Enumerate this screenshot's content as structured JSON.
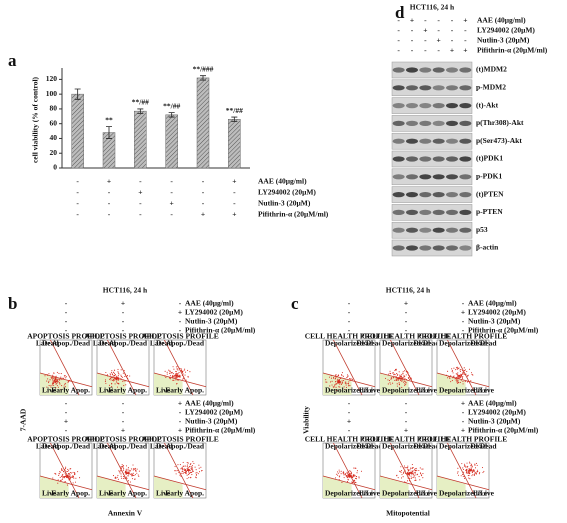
{
  "chart_data": {
    "type": "bar",
    "letter": "a",
    "ylabel": "cell viability (% of control)",
    "values": [
      100,
      48,
      77,
      72,
      122,
      66
    ],
    "errors": [
      7,
      8,
      3,
      3,
      3,
      3
    ],
    "annotations": [
      null,
      "**",
      "**/##",
      "**/##",
      "**/###",
      "**/##"
    ],
    "color": "#9a9a9a",
    "ylim": [
      0,
      130
    ],
    "yticks": [
      0,
      20,
      40,
      60,
      80,
      100,
      120
    ],
    "treatments": [
      {
        "label": "AAE (40μg/ml)",
        "signs": [
          "-",
          "+",
          "-",
          "-",
          "-",
          "+"
        ]
      },
      {
        "label": "LY294002 (20μM)",
        "signs": [
          "-",
          "-",
          "+",
          "-",
          "-",
          "-"
        ]
      },
      {
        "label": "Nutlin-3 (20μM)",
        "signs": [
          "-",
          "-",
          "-",
          "+",
          "-",
          "-"
        ]
      },
      {
        "label": "Pifithrin-α (20μM/ml)",
        "signs": [
          "-",
          "-",
          "-",
          "-",
          "+",
          "+"
        ]
      }
    ]
  },
  "panel_b": {
    "letter": "b",
    "title": "HCT116, 24 h",
    "plot_title": "APOPTOSIS PROFILE",
    "ylabel": "7-AAD",
    "xlabel": "Annexin V",
    "quadrants": [
      "Dead",
      "Late Apop./Dead",
      "Live",
      "Early Apop."
    ],
    "treatments_top": [
      {
        "label": "AAE (40μg/ml)",
        "signs": [
          "-",
          "+",
          "-"
        ]
      },
      {
        "label": "LY294002 (20μM)",
        "signs": [
          "-",
          "-",
          "+"
        ]
      },
      {
        "label": "Nutlin-3 (20μM)",
        "signs": [
          "-",
          "-",
          "-"
        ]
      },
      {
        "label": "Pifithrin-α (20μM/ml)",
        "signs": [
          "-",
          "-",
          "-"
        ]
      }
    ],
    "treatments_bottom": [
      {
        "label": "AAE (40μg/ml)",
        "signs": [
          "-",
          "-",
          "+"
        ]
      },
      {
        "label": "LY294002 (20μM)",
        "signs": [
          "-",
          "-",
          "-"
        ]
      },
      {
        "label": "Nutlin-3 (20μM)",
        "signs": [
          "+",
          "-",
          "-"
        ]
      },
      {
        "label": "Pifithrin-α (20μM/ml)",
        "signs": [
          "-",
          "+",
          "+"
        ]
      }
    ]
  },
  "panel_c": {
    "letter": "c",
    "title": "HCT116, 24 h",
    "plot_title": "CELL HEALTH PROFILE",
    "ylabel": "Viability",
    "xlabel": "Mitopotential",
    "quadrants": [
      "Depolarized/Dead",
      "Dead",
      "Depolarized/Live",
      "Live"
    ],
    "treatments_top": [
      {
        "label": "AAE (40μg/ml)",
        "signs": [
          "-",
          "+",
          "-"
        ]
      },
      {
        "label": "LY294002 (20μM)",
        "signs": [
          "-",
          "-",
          "+"
        ]
      },
      {
        "label": "Nutlin-3 (20μM)",
        "signs": [
          "-",
          "-",
          "-"
        ]
      },
      {
        "label": "Pifithrin-α (20μM/ml)",
        "signs": [
          "-",
          "-",
          "-"
        ]
      }
    ],
    "treatments_bottom": [
      {
        "label": "AAE (40μg/ml)",
        "signs": [
          "-",
          "-",
          "+"
        ]
      },
      {
        "label": "LY294002 (20μM)",
        "signs": [
          "-",
          "-",
          "-"
        ]
      },
      {
        "label": "Nutlin-3 (20μM)",
        "signs": [
          "+",
          "-",
          "-"
        ]
      },
      {
        "label": "Pifithrin-α (20μM/ml)",
        "signs": [
          "-",
          "+",
          "+"
        ]
      }
    ]
  },
  "panel_d": {
    "letter": "d",
    "title": "HCT116, 24 h",
    "treatments": [
      {
        "label": "AAE (40μg/ml)",
        "signs": [
          "-",
          "+",
          "-",
          "-",
          "-",
          "+"
        ]
      },
      {
        "label": "LY294002 (20μM)",
        "signs": [
          "-",
          "-",
          "+",
          "-",
          "-",
          "-"
        ]
      },
      {
        "label": "Nutlin-3 (20μM)",
        "signs": [
          "-",
          "-",
          "-",
          "+",
          "-",
          "-"
        ]
      },
      {
        "label": "Pifithrin-α (20μM/ml)",
        "signs": [
          "-",
          "-",
          "-",
          "-",
          "+",
          "+"
        ]
      }
    ],
    "blots": [
      "(t)MDM2",
      "p-MDM2",
      "(t)-Akt",
      "p(Thr308)-Akt",
      "p(Ser473)-Akt",
      "(t)PDK1",
      "p-PDK1",
      "(t)PTEN",
      "p-PTEN",
      "p53",
      "β-actin"
    ]
  }
}
